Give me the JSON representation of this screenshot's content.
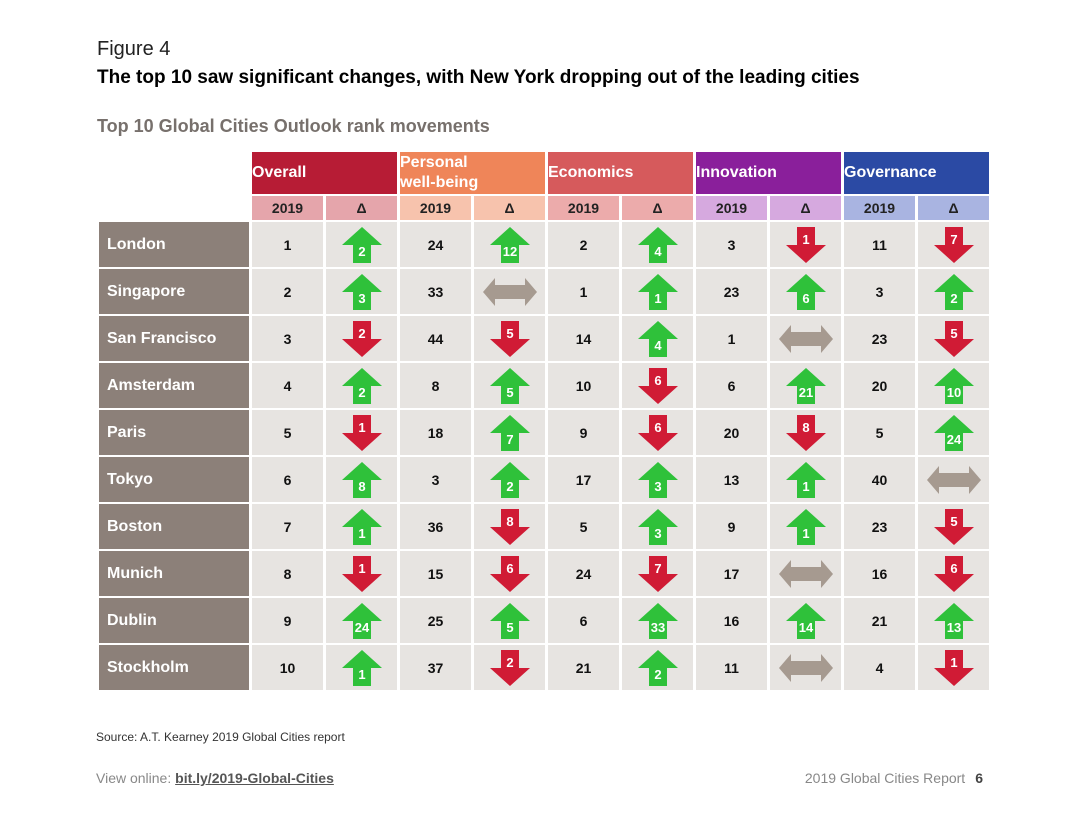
{
  "figure_label": "Figure 4",
  "figure_title": "The top 10 saw significant changes, with New York dropping out of the leading cities",
  "subtitle": "Top 10 Global Cities Outlook rank movements",
  "categories": [
    {
      "name": "Overall",
      "color": "#b71c35",
      "sub_color": "#e5a5ab"
    },
    {
      "name": "Personal\nwell-being",
      "color": "#ef8559",
      "sub_color": "#f7c3ad"
    },
    {
      "name": "Economics",
      "color": "#d65a5c",
      "sub_color": "#ecabab"
    },
    {
      "name": "Innovation",
      "color": "#8a1f9b",
      "sub_color": "#d6a9df"
    },
    {
      "name": "Governance",
      "color": "#2b4aa4",
      "sub_color": "#a9b4e1"
    }
  ],
  "sub_headers": {
    "year": "2019",
    "delta": "Δ"
  },
  "arrow_colors": {
    "up": "#2fc13a",
    "down": "#d01b35",
    "same": "#a69a90"
  },
  "rows": [
    {
      "city": "London",
      "cells": [
        {
          "rank": "1",
          "dir": "up",
          "change": "2"
        },
        {
          "rank": "24",
          "dir": "up",
          "change": "12"
        },
        {
          "rank": "2",
          "dir": "up",
          "change": "4"
        },
        {
          "rank": "3",
          "dir": "down",
          "change": "1"
        },
        {
          "rank": "11",
          "dir": "down",
          "change": "7"
        }
      ]
    },
    {
      "city": "Singapore",
      "cells": [
        {
          "rank": "2",
          "dir": "up",
          "change": "3"
        },
        {
          "rank": "33",
          "dir": "same",
          "change": ""
        },
        {
          "rank": "1",
          "dir": "up",
          "change": "1"
        },
        {
          "rank": "23",
          "dir": "up",
          "change": "6"
        },
        {
          "rank": "3",
          "dir": "up",
          "change": "2"
        }
      ]
    },
    {
      "city": "San Francisco",
      "cells": [
        {
          "rank": "3",
          "dir": "down",
          "change": "2"
        },
        {
          "rank": "44",
          "dir": "down",
          "change": "5"
        },
        {
          "rank": "14",
          "dir": "up",
          "change": "4"
        },
        {
          "rank": "1",
          "dir": "same",
          "change": ""
        },
        {
          "rank": "23",
          "dir": "down",
          "change": "5"
        }
      ]
    },
    {
      "city": "Amsterdam",
      "cells": [
        {
          "rank": "4",
          "dir": "up",
          "change": "2"
        },
        {
          "rank": "8",
          "dir": "up",
          "change": "5"
        },
        {
          "rank": "10",
          "dir": "down",
          "change": "6"
        },
        {
          "rank": "6",
          "dir": "up",
          "change": "21"
        },
        {
          "rank": "20",
          "dir": "up",
          "change": "10"
        }
      ]
    },
    {
      "city": "Paris",
      "cells": [
        {
          "rank": "5",
          "dir": "down",
          "change": "1"
        },
        {
          "rank": "18",
          "dir": "up",
          "change": "7"
        },
        {
          "rank": "9",
          "dir": "down",
          "change": "6"
        },
        {
          "rank": "20",
          "dir": "down",
          "change": "8"
        },
        {
          "rank": "5",
          "dir": "up",
          "change": "24"
        }
      ]
    },
    {
      "city": "Tokyo",
      "cells": [
        {
          "rank": "6",
          "dir": "up",
          "change": "8"
        },
        {
          "rank": "3",
          "dir": "up",
          "change": "2"
        },
        {
          "rank": "17",
          "dir": "up",
          "change": "3"
        },
        {
          "rank": "13",
          "dir": "up",
          "change": "1"
        },
        {
          "rank": "40",
          "dir": "same",
          "change": ""
        }
      ]
    },
    {
      "city": "Boston",
      "cells": [
        {
          "rank": "7",
          "dir": "up",
          "change": "1"
        },
        {
          "rank": "36",
          "dir": "down",
          "change": "8"
        },
        {
          "rank": "5",
          "dir": "up",
          "change": "3"
        },
        {
          "rank": "9",
          "dir": "up",
          "change": "1"
        },
        {
          "rank": "23",
          "dir": "down",
          "change": "5"
        }
      ]
    },
    {
      "city": "Munich",
      "cells": [
        {
          "rank": "8",
          "dir": "down",
          "change": "1"
        },
        {
          "rank": "15",
          "dir": "down",
          "change": "6"
        },
        {
          "rank": "24",
          "dir": "down",
          "change": "7"
        },
        {
          "rank": "17",
          "dir": "same",
          "change": ""
        },
        {
          "rank": "16",
          "dir": "down",
          "change": "6"
        }
      ]
    },
    {
      "city": "Dublin",
      "cells": [
        {
          "rank": "9",
          "dir": "up",
          "change": "24"
        },
        {
          "rank": "25",
          "dir": "up",
          "change": "5"
        },
        {
          "rank": "6",
          "dir": "up",
          "change": "33"
        },
        {
          "rank": "16",
          "dir": "up",
          "change": "14"
        },
        {
          "rank": "21",
          "dir": "up",
          "change": "13"
        }
      ]
    },
    {
      "city": "Stockholm",
      "cells": [
        {
          "rank": "10",
          "dir": "up",
          "change": "1"
        },
        {
          "rank": "37",
          "dir": "down",
          "change": "2"
        },
        {
          "rank": "21",
          "dir": "up",
          "change": "2"
        },
        {
          "rank": "11",
          "dir": "same",
          "change": ""
        },
        {
          "rank": "4",
          "dir": "down",
          "change": "1"
        }
      ]
    }
  ],
  "source": "Source: A.T. Kearney 2019 Global Cities report",
  "view_online_prefix": "View online: ",
  "view_online_link": "bit.ly/2019-Global-Cities",
  "report_name": "2019 Global Cities Report",
  "page_number": "6"
}
